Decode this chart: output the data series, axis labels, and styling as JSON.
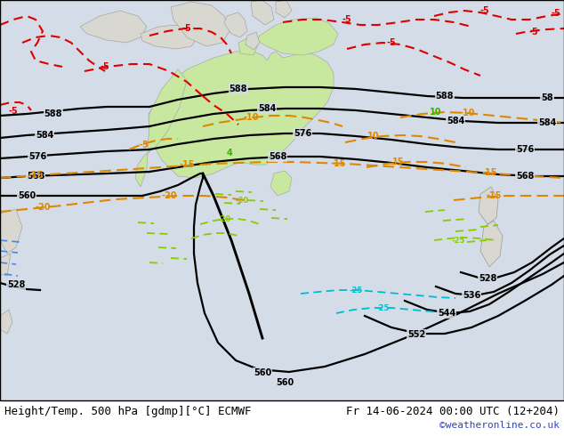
{
  "title_left": "Height/Temp. 500 hPa [gdmp][°C] ECMWF",
  "title_right": "Fr 14-06-2024 00:00 UTC (12+204)",
  "watermark": "©weatheronline.co.uk",
  "bg_color": "#d4dce8",
  "aus_color": "#c8e8a0",
  "land_color": "#d8d8d0",
  "text_color": "#000000",
  "watermark_color": "#3344bb",
  "font_size_title": 9,
  "font_size_watermark": 8
}
